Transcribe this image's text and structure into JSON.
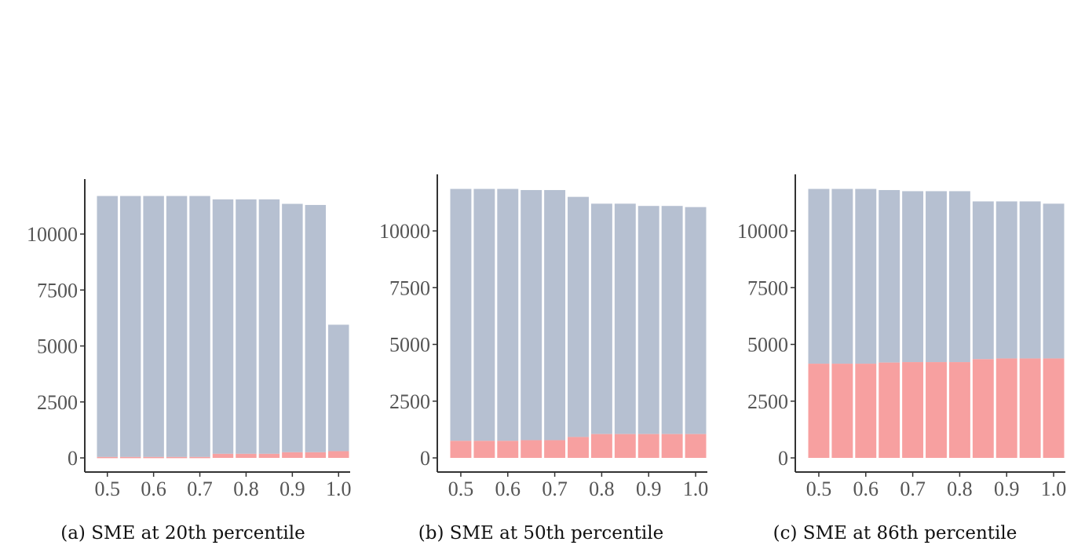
{
  "colors": {
    "base": "#b6c0d1",
    "segment": "#f7a0a0",
    "axis": "#333333"
  },
  "chart_data": [
    {
      "type": "bar",
      "stacked": true,
      "caption": "(a) SME at 20th percentile",
      "x": [
        0.5,
        0.55,
        0.6,
        0.65,
        0.7,
        0.75,
        0.8,
        0.85,
        0.9,
        0.95,
        1.0
      ],
      "x_ticks": [
        0.5,
        0.6,
        0.7,
        0.8,
        0.9,
        1.0
      ],
      "x_tick_labels": [
        "0.5",
        "0.6",
        "0.7",
        "0.8",
        "0.9",
        "1.0"
      ],
      "y_ticks": [
        0,
        2500,
        5000,
        7500,
        10000
      ],
      "y_tick_labels": [
        "0",
        "2500",
        "5000",
        "7500",
        "10000"
      ],
      "ylim": [
        -600,
        12500
      ],
      "totals": [
        11700,
        11700,
        11700,
        11700,
        11700,
        11550,
        11550,
        11550,
        11350,
        11300,
        5950
      ],
      "bottom_segment": [
        40,
        40,
        40,
        40,
        40,
        180,
        180,
        180,
        250,
        250,
        300
      ],
      "grid": false
    },
    {
      "type": "bar",
      "stacked": true,
      "caption": "(b) SME at 50th percentile",
      "x": [
        0.5,
        0.55,
        0.6,
        0.65,
        0.7,
        0.75,
        0.8,
        0.85,
        0.9,
        0.95,
        1.0
      ],
      "x_ticks": [
        0.5,
        0.6,
        0.7,
        0.8,
        0.9,
        1.0
      ],
      "x_tick_labels": [
        "0.5",
        "0.6",
        "0.7",
        "0.8",
        "0.9",
        "1.0"
      ],
      "y_ticks": [
        0,
        2500,
        5000,
        7500,
        10000
      ],
      "y_tick_labels": [
        "0",
        "2500",
        "5000",
        "7500",
        "10000"
      ],
      "ylim": [
        -600,
        12500
      ],
      "totals": [
        11850,
        11850,
        11850,
        11800,
        11800,
        11500,
        11200,
        11200,
        11100,
        11100,
        11050
      ],
      "bottom_segment": [
        750,
        750,
        750,
        780,
        780,
        920,
        1050,
        1050,
        1050,
        1050,
        1050
      ],
      "grid": false
    },
    {
      "type": "bar",
      "stacked": true,
      "caption": "(c) SME at 86th percentile",
      "x": [
        0.5,
        0.55,
        0.6,
        0.65,
        0.7,
        0.75,
        0.8,
        0.85,
        0.9,
        0.95,
        1.0
      ],
      "x_ticks": [
        0.5,
        0.6,
        0.7,
        0.8,
        0.9,
        1.0
      ],
      "x_tick_labels": [
        "0.5",
        "0.6",
        "0.7",
        "0.8",
        "0.9",
        "1.0"
      ],
      "y_ticks": [
        0,
        2500,
        5000,
        7500,
        10000
      ],
      "y_tick_labels": [
        "0",
        "2500",
        "5000",
        "7500",
        "10000"
      ],
      "ylim": [
        -600,
        12500
      ],
      "totals": [
        11850,
        11850,
        11850,
        11800,
        11750,
        11750,
        11750,
        11300,
        11300,
        11300,
        11200
      ],
      "bottom_segment": [
        4150,
        4150,
        4150,
        4200,
        4220,
        4220,
        4220,
        4350,
        4380,
        4380,
        4380
      ],
      "grid": false
    }
  ]
}
